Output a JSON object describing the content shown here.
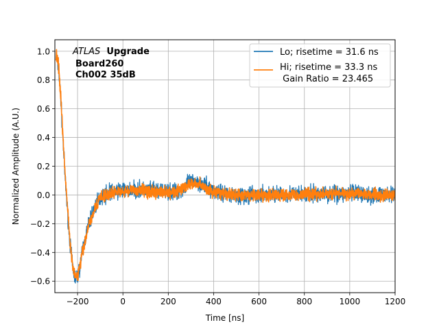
{
  "chart_data": {
    "type": "line",
    "title": "",
    "xlabel": "Time [ns]",
    "ylabel": "Normalized Amplitude (A.U.)",
    "xlim": [
      -300,
      1200
    ],
    "ylim": [
      -0.68,
      1.08
    ],
    "x_ticks": [
      -200,
      0,
      200,
      400,
      600,
      800,
      1000,
      1200
    ],
    "y_ticks": [
      -0.6,
      -0.4,
      -0.2,
      0.0,
      0.2,
      0.4,
      0.6,
      0.8,
      1.0
    ],
    "x_tick_labels": [
      "−200",
      "0",
      "200",
      "400",
      "600",
      "800",
      "1000",
      "1200"
    ],
    "y_tick_labels": [
      "−0.6",
      "−0.4",
      "−0.2",
      "0.0",
      "0.2",
      "0.4",
      "0.6",
      "0.8",
      "1.0"
    ],
    "grid": true,
    "legend_position": "top-right",
    "annotation": {
      "atlas": "ATLAS",
      "upgrade": "Upgrade",
      "board": "Board260",
      "channel": "Ch002 35dB"
    },
    "series": [
      {
        "name": "Lo; risetime = 31.6 ns",
        "legend_label": "Lo; risetime = 31.6 ns",
        "color": "#1f77b4",
        "noise_amplitude": 0.035,
        "x": [
          -295,
          -285,
          -275,
          -265,
          -255,
          -245,
          -235,
          -225,
          -215,
          -205,
          -200,
          -190,
          -180,
          -170,
          -160,
          -150,
          -140,
          -125,
          -110,
          -95,
          -80,
          -60,
          -40,
          -20,
          0,
          50,
          100,
          150,
          200,
          230,
          260,
          290,
          320,
          350,
          400,
          450,
          500,
          550,
          600,
          700,
          800,
          900,
          1000,
          1100,
          1200
        ],
        "y": [
          0.96,
          0.9,
          0.7,
          0.4,
          0.12,
          -0.1,
          -0.3,
          -0.46,
          -0.56,
          -0.58,
          -0.57,
          -0.5,
          -0.4,
          -0.33,
          -0.26,
          -0.2,
          -0.15,
          -0.09,
          -0.04,
          -0.01,
          0.0,
          0.02,
          0.02,
          0.03,
          0.03,
          0.04,
          0.03,
          0.03,
          0.02,
          0.02,
          0.04,
          0.08,
          0.1,
          0.07,
          0.03,
          0.01,
          0.0,
          -0.01,
          0.0,
          0.01,
          0.0,
          0.01,
          0.01,
          0.0,
          0.0
        ]
      },
      {
        "name": "Hi; risetime = 33.3 ns\n Gain Ratio = 23.465",
        "legend_label": "Hi; risetime = 33.3 ns",
        "legend_label_2": " Gain Ratio = 23.465",
        "color": "#ff7f0e",
        "noise_amplitude": 0.026,
        "x": [
          -295,
          -285,
          -275,
          -265,
          -255,
          -245,
          -235,
          -225,
          -215,
          -205,
          -200,
          -190,
          -180,
          -170,
          -160,
          -150,
          -140,
          -125,
          -110,
          -95,
          -80,
          -60,
          -40,
          -20,
          0,
          50,
          100,
          150,
          200,
          230,
          260,
          290,
          320,
          350,
          400,
          450,
          500,
          550,
          600,
          700,
          800,
          900,
          1000,
          1100,
          1200
        ],
        "y": [
          0.98,
          0.92,
          0.72,
          0.42,
          0.14,
          -0.08,
          -0.28,
          -0.45,
          -0.55,
          -0.57,
          -0.56,
          -0.5,
          -0.41,
          -0.34,
          -0.27,
          -0.21,
          -0.16,
          -0.1,
          -0.05,
          -0.02,
          0.0,
          0.01,
          0.02,
          0.02,
          0.02,
          0.03,
          0.03,
          0.02,
          0.02,
          0.02,
          0.04,
          0.07,
          0.09,
          0.06,
          0.02,
          0.01,
          0.0,
          -0.01,
          0.0,
          0.0,
          0.0,
          0.01,
          0.01,
          0.0,
          0.0
        ]
      }
    ]
  }
}
